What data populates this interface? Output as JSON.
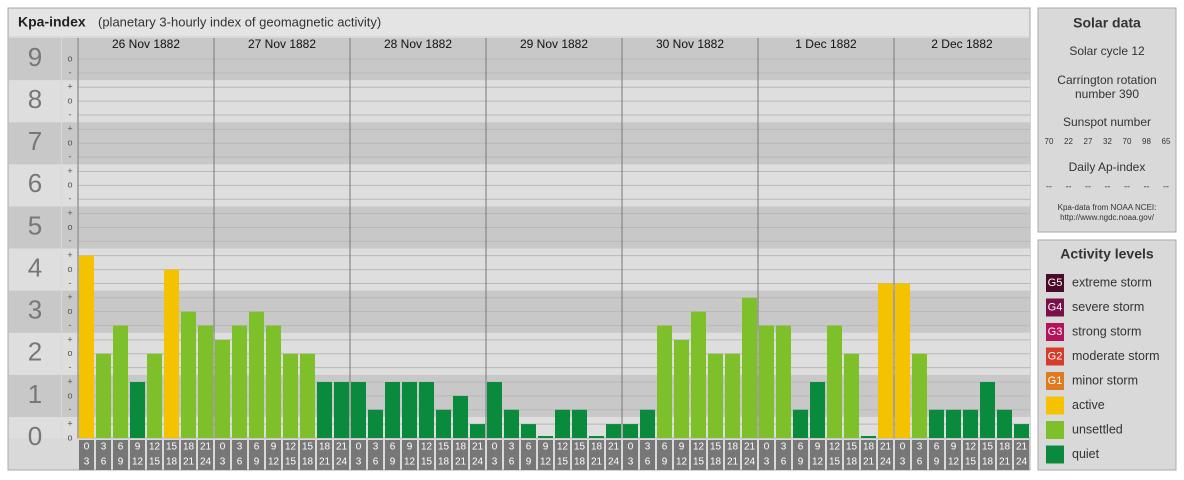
{
  "chart_data": {
    "type": "bar",
    "title": "Kpa-index",
    "subtitle": "(planetary 3-hourly index of geomagnetic activity)",
    "days": [
      "26 Nov 1882",
      "27 Nov 1882",
      "28 Nov 1882",
      "29 Nov 1882",
      "30 Nov 1882",
      "1 Dec 1882",
      "2 Dec 1882"
    ],
    "hour_labels": [
      [
        "0",
        "3"
      ],
      [
        "3",
        "6"
      ],
      [
        "6",
        "9"
      ],
      [
        "9",
        "12"
      ],
      [
        "12",
        "15"
      ],
      [
        "15",
        "18"
      ],
      [
        "18",
        "21"
      ],
      [
        "21",
        "24"
      ]
    ],
    "values": [
      4.33,
      2,
      2.67,
      1.33,
      2,
      4,
      3,
      2.67,
      2.33,
      2.67,
      3,
      2.67,
      2,
      2,
      1.33,
      1.33,
      1.33,
      0.67,
      1.33,
      1.33,
      1.33,
      0.67,
      1,
      0.33,
      1.33,
      0.67,
      0.33,
      0,
      0.67,
      0.67,
      0,
      0.33,
      0.33,
      0.67,
      2.67,
      2.33,
      3,
      2,
      2,
      3.33,
      2.67,
      2.67,
      0.67,
      1.33,
      2.67,
      2,
      0,
      3.67,
      3.67,
      2,
      0.67,
      0.67,
      0.67,
      1.33,
      0.67,
      0.33
    ],
    "colors": [
      "#f5c200",
      "#7ec02a",
      "#7ec02a",
      "#0a8a3c",
      "#7ec02a",
      "#f5c200",
      "#7ec02a",
      "#7ec02a",
      "#7ec02a",
      "#7ec02a",
      "#7ec02a",
      "#7ec02a",
      "#7ec02a",
      "#7ec02a",
      "#0a8a3c",
      "#0a8a3c",
      "#0a8a3c",
      "#0a8a3c",
      "#0a8a3c",
      "#0a8a3c",
      "#0a8a3c",
      "#0a8a3c",
      "#0a8a3c",
      "#0a8a3c",
      "#0a8a3c",
      "#0a8a3c",
      "#0a8a3c",
      "#0a8a3c",
      "#0a8a3c",
      "#0a8a3c",
      "#0a8a3c",
      "#0a8a3c",
      "#0a8a3c",
      "#0a8a3c",
      "#7ec02a",
      "#7ec02a",
      "#7ec02a",
      "#7ec02a",
      "#7ec02a",
      "#7ec02a",
      "#7ec02a",
      "#7ec02a",
      "#0a8a3c",
      "#0a8a3c",
      "#7ec02a",
      "#7ec02a",
      "#0a8a3c",
      "#f5c200",
      "#f5c200",
      "#7ec02a",
      "#0a8a3c",
      "#0a8a3c",
      "#0a8a3c",
      "#0a8a3c",
      "#0a8a3c",
      "#0a8a3c"
    ],
    "ylim": [
      0,
      9.5
    ],
    "yticks": [
      0,
      1,
      2,
      3,
      4,
      5,
      6,
      7,
      8,
      9
    ],
    "subticks": [
      {
        "value": -0.33,
        "label": "-"
      },
      {
        "value": 0,
        "label": "o"
      },
      {
        "value": 0.33,
        "label": "+"
      }
    ]
  },
  "solar_data": {
    "title": "Solar data",
    "cycle": "Solar cycle 12",
    "carrington": [
      "Carrington rotation",
      "number 390"
    ],
    "sunspot_title": "Sunspot number",
    "sunspot": [
      70,
      22,
      27,
      32,
      70,
      98,
      65
    ],
    "ap_title": "Daily Ap-index",
    "ap": [
      "--",
      "--",
      "--",
      "--",
      "--",
      "--",
      "--"
    ],
    "source": [
      "Kpa-data from NOAA NCEI:",
      "http://www.ngdc.noaa.gov/"
    ]
  },
  "activity_levels": {
    "title": "Activity levels",
    "items": [
      {
        "badge": "G5",
        "label": "extreme storm",
        "color": "#4a0a2a"
      },
      {
        "badge": "G4",
        "label": "severe storm",
        "color": "#7a1048"
      },
      {
        "badge": "G3",
        "label": "strong storm",
        "color": "#b5125b"
      },
      {
        "badge": "G2",
        "label": "moderate storm",
        "color": "#d63a2a"
      },
      {
        "badge": "G1",
        "label": "minor storm",
        "color": "#e07a20"
      },
      {
        "label": "active",
        "color": "#f5c200"
      },
      {
        "label": "unsettled",
        "color": "#7ec02a"
      },
      {
        "label": "quiet",
        "color": "#0a8a3c"
      }
    ]
  }
}
